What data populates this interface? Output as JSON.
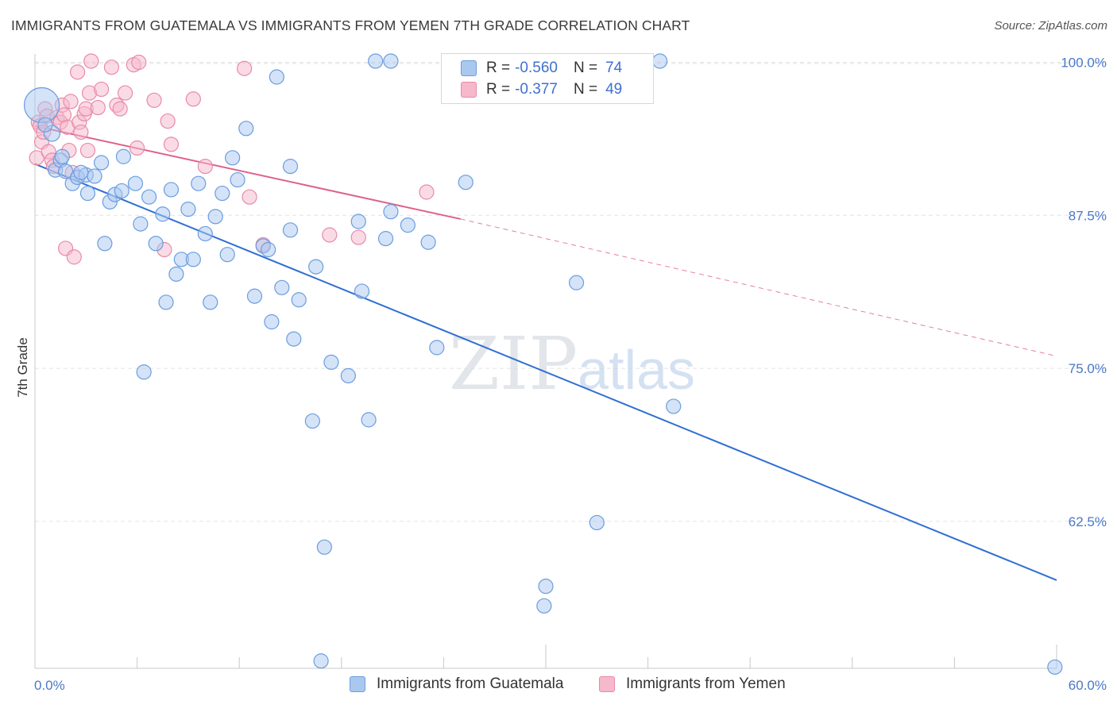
{
  "header": {
    "title": "IMMIGRANTS FROM GUATEMALA VS IMMIGRANTS FROM YEMEN 7TH GRADE CORRELATION CHART",
    "source": "Source: ZipAtlas.com"
  },
  "watermark": "ZIPatlas",
  "legend": {
    "rows": [
      {
        "r_label": "R =",
        "r_value": "-0.560",
        "n_label": "N =",
        "n_value": "74"
      },
      {
        "r_label": "R =",
        "r_value": "-0.377",
        "n_label": "N =",
        "n_value": "49"
      }
    ]
  },
  "bottom_legend": [
    "Immigrants from Guatemala",
    "Immigrants from Yemen"
  ],
  "colors": {
    "series1_fill": "#a9c8ef",
    "series1_stroke": "#6b9de0",
    "series1_line": "#2f6fd3",
    "series2_fill": "#f6b8cb",
    "series2_stroke": "#e98aa8",
    "series2_line": "#e0608a",
    "tick_label": "#4a78c9",
    "grid": "#e3e3e3"
  },
  "chart_data": {
    "type": "scatter",
    "title": "IMMIGRANTS FROM GUATEMALA VS IMMIGRANTS FROM YEMEN 7TH GRADE CORRELATION CHART",
    "ylabel": "7th Grade",
    "xlabel": "",
    "xlim": [
      0,
      60
    ],
    "ylim": [
      50.5,
      101.2
    ],
    "x_tick_labels": [
      "0.0%",
      "60.0%"
    ],
    "y_ticks": [
      62.5,
      75.0,
      87.5,
      100.0
    ],
    "y_tick_labels": [
      "62.5%",
      "75.0%",
      "87.5%",
      "100.0%"
    ],
    "grid": true,
    "legend_position": "top-center",
    "series": [
      {
        "name": "Immigrants from Guatemala",
        "r": -0.56,
        "n": 74,
        "trend": {
          "x": [
            0,
            60
          ],
          "y": [
            91.7,
            57.7
          ]
        },
        "points": [
          [
            0.4,
            96.5,
            22
          ],
          [
            1.0,
            94.2,
            10
          ],
          [
            1.2,
            91.2,
            9
          ],
          [
            1.5,
            92.0,
            9
          ],
          [
            1.8,
            91.1,
            9
          ],
          [
            2.2,
            90.1,
            9
          ],
          [
            2.5,
            90.6,
            9
          ],
          [
            3.0,
            90.8,
            9
          ],
          [
            3.1,
            89.3,
            9
          ],
          [
            3.5,
            90.7,
            9
          ],
          [
            3.9,
            91.8,
            9
          ],
          [
            4.1,
            85.2,
            9
          ],
          [
            4.4,
            88.6,
            9
          ],
          [
            4.7,
            89.2,
            9
          ],
          [
            5.1,
            89.5,
            9
          ],
          [
            5.2,
            92.3,
            9
          ],
          [
            5.9,
            90.1,
            9
          ],
          [
            6.2,
            86.8,
            9
          ],
          [
            6.4,
            74.7,
            9
          ],
          [
            6.7,
            89.0,
            9
          ],
          [
            7.1,
            85.2,
            9
          ],
          [
            7.5,
            87.6,
            9
          ],
          [
            7.7,
            80.4,
            9
          ],
          [
            8.0,
            89.6,
            9
          ],
          [
            8.3,
            82.7,
            9
          ],
          [
            8.6,
            83.9,
            9
          ],
          [
            9.0,
            88.0,
            9
          ],
          [
            9.3,
            83.9,
            9
          ],
          [
            9.6,
            90.1,
            9
          ],
          [
            10.0,
            86.0,
            9
          ],
          [
            10.3,
            80.4,
            9
          ],
          [
            10.6,
            87.4,
            9
          ],
          [
            11.0,
            89.3,
            9
          ],
          [
            11.3,
            84.3,
            9
          ],
          [
            11.6,
            92.2,
            9
          ],
          [
            11.9,
            90.4,
            9
          ],
          [
            12.4,
            94.6,
            9
          ],
          [
            12.9,
            80.9,
            9
          ],
          [
            13.4,
            85.0,
            9
          ],
          [
            13.7,
            84.7,
            9
          ],
          [
            13.9,
            78.8,
            9
          ],
          [
            14.2,
            98.8,
            9
          ],
          [
            14.5,
            81.6,
            9
          ],
          [
            15.0,
            86.3,
            9
          ],
          [
            15.0,
            91.5,
            9
          ],
          [
            15.2,
            77.4,
            9
          ],
          [
            15.5,
            80.6,
            9
          ],
          [
            16.3,
            70.7,
            9
          ],
          [
            16.5,
            83.3,
            9
          ],
          [
            16.8,
            51.1,
            9
          ],
          [
            17.0,
            60.4,
            9
          ],
          [
            17.4,
            75.5,
            9
          ],
          [
            18.4,
            74.4,
            9
          ],
          [
            19.0,
            87.0,
            9
          ],
          [
            19.2,
            81.3,
            9
          ],
          [
            19.6,
            70.8,
            9
          ],
          [
            20.0,
            100.1,
            9
          ],
          [
            20.6,
            85.6,
            9
          ],
          [
            20.9,
            87.8,
            9
          ],
          [
            20.9,
            100.1,
            9
          ],
          [
            21.9,
            86.7,
            9
          ],
          [
            23.1,
            85.3,
            9
          ],
          [
            23.6,
            76.7,
            9
          ],
          [
            25.3,
            90.2,
            9
          ],
          [
            29.9,
            55.6,
            9
          ],
          [
            30.0,
            57.2,
            9
          ],
          [
            31.8,
            82.0,
            9
          ],
          [
            33.0,
            62.4,
            9
          ],
          [
            36.7,
            100.1,
            9
          ],
          [
            37.5,
            71.9,
            9
          ],
          [
            59.9,
            50.6,
            9
          ],
          [
            0.6,
            94.9,
            9
          ],
          [
            1.6,
            92.3,
            9
          ],
          [
            2.7,
            91.0,
            9
          ]
        ]
      },
      {
        "name": "Immigrants from Yemen",
        "r": -0.377,
        "n": 49,
        "trend": {
          "x": [
            0,
            25
          ],
          "y": [
            94.8,
            87.2
          ]
        },
        "trend_extension": {
          "x": [
            25,
            60
          ],
          "y": [
            87.2,
            76.0
          ]
        },
        "points": [
          [
            0.1,
            92.2,
            9
          ],
          [
            0.2,
            95.1,
            9
          ],
          [
            0.3,
            94.8,
            9
          ],
          [
            0.4,
            93.5,
            9
          ],
          [
            0.5,
            94.3,
            9
          ],
          [
            0.6,
            96.2,
            9
          ],
          [
            0.7,
            95.6,
            9
          ],
          [
            0.8,
            92.7,
            9
          ],
          [
            1.0,
            92.0,
            9
          ],
          [
            1.1,
            91.5,
            9
          ],
          [
            1.3,
            95.5,
            9
          ],
          [
            1.5,
            95.1,
            9
          ],
          [
            1.6,
            96.5,
            9
          ],
          [
            1.7,
            95.7,
            9
          ],
          [
            1.9,
            94.7,
            9
          ],
          [
            2.0,
            92.8,
            9
          ],
          [
            2.1,
            96.8,
            9
          ],
          [
            2.2,
            91.0,
            9
          ],
          [
            1.8,
            84.8,
            9
          ],
          [
            2.3,
            84.1,
            9
          ],
          [
            2.5,
            99.2,
            9
          ],
          [
            2.6,
            95.1,
            9
          ],
          [
            2.7,
            94.3,
            9
          ],
          [
            2.9,
            95.8,
            9
          ],
          [
            3.0,
            96.2,
            9
          ],
          [
            3.1,
            92.8,
            9
          ],
          [
            3.2,
            97.5,
            9
          ],
          [
            3.3,
            100.1,
            9
          ],
          [
            3.7,
            96.3,
            9
          ],
          [
            3.9,
            97.8,
            9
          ],
          [
            4.5,
            99.6,
            9
          ],
          [
            4.8,
            96.5,
            9
          ],
          [
            5.0,
            96.2,
            9
          ],
          [
            5.3,
            97.5,
            9
          ],
          [
            5.8,
            99.8,
            9
          ],
          [
            6.0,
            93.0,
            9
          ],
          [
            6.1,
            100.0,
            9
          ],
          [
            7.0,
            96.9,
            9
          ],
          [
            7.6,
            84.7,
            9
          ],
          [
            7.8,
            95.2,
            9
          ],
          [
            8.0,
            93.3,
            9
          ],
          [
            9.3,
            97.0,
            9
          ],
          [
            10.0,
            91.5,
            9
          ],
          [
            12.3,
            99.5,
            9
          ],
          [
            12.6,
            89.0,
            9
          ],
          [
            13.4,
            85.1,
            9
          ],
          [
            17.3,
            85.9,
            9
          ],
          [
            19.0,
            85.7,
            9
          ],
          [
            23.0,
            89.4,
            9
          ]
        ]
      }
    ]
  }
}
